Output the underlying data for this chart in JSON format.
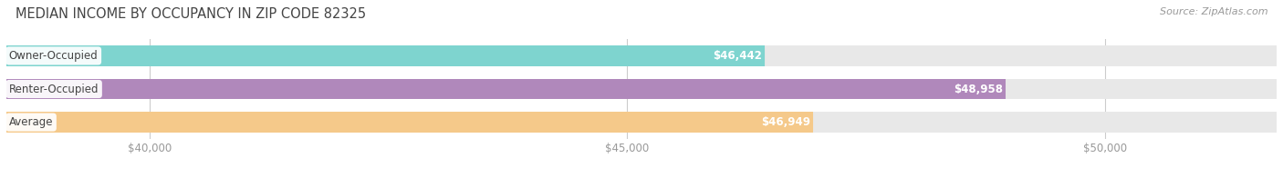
{
  "title": "MEDIAN INCOME BY OCCUPANCY IN ZIP CODE 82325",
  "source": "Source: ZipAtlas.com",
  "categories": [
    "Owner-Occupied",
    "Renter-Occupied",
    "Average"
  ],
  "values": [
    46442,
    48958,
    46949
  ],
  "bar_colors": [
    "#7ed4cf",
    "#b088bb",
    "#f5c98a"
  ],
  "bar_labels": [
    "$46,442",
    "$48,958",
    "$46,949"
  ],
  "xlim_min": 38500,
  "xlim_max": 51800,
  "xticks": [
    40000,
    45000,
    50000
  ],
  "xtick_labels": [
    "$40,000",
    "$45,000",
    "$50,000"
  ],
  "background_color": "#ffffff",
  "bar_bg_color": "#e8e8e8",
  "title_fontsize": 10.5,
  "source_fontsize": 8,
  "label_fontsize": 8.5,
  "tick_fontsize": 8.5,
  "bar_height": 0.62,
  "bar_label_color": "#ffffff",
  "category_label_color": "#444444",
  "grid_color": "#cccccc",
  "title_color": "#444444",
  "source_color": "#999999",
  "tick_color": "#999999"
}
